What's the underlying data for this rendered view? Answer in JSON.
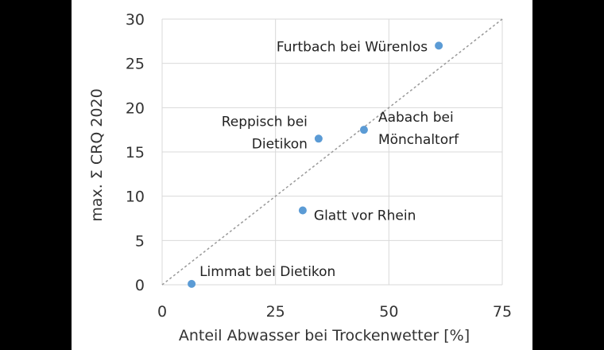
{
  "chart_data": {
    "type": "scatter",
    "title": "",
    "xlabel": "Anteil Abwasser bei Trockenwetter [%]",
    "ylabel": "max. Σ CRQ 2020",
    "xlim": [
      0,
      75
    ],
    "ylim": [
      0,
      30
    ],
    "xticks": [
      "0",
      "25",
      "50",
      "75"
    ],
    "yticks": [
      "0",
      "5",
      "10",
      "15",
      "20",
      "25",
      "30"
    ],
    "grid": true,
    "marker_color": "#5B9BD5",
    "reference_line": {
      "style": "dashed",
      "color": "#999999",
      "from": [
        0,
        0
      ],
      "to": [
        75,
        30
      ]
    },
    "points": [
      {
        "x": 6.5,
        "y": 0.1,
        "label": [
          "Limmat bei Dietikon"
        ]
      },
      {
        "x": 31,
        "y": 8.4,
        "label": [
          "Glatt vor Rhein"
        ]
      },
      {
        "x": 34.5,
        "y": 16.5,
        "label": [
          "Reppisch bei",
          "Dietikon"
        ]
      },
      {
        "x": 44.5,
        "y": 17.5,
        "label": [
          "Aabach bei",
          "Mönchaltorf"
        ]
      },
      {
        "x": 61,
        "y": 27,
        "label": [
          "Furtbach bei Würenlos"
        ]
      }
    ]
  }
}
